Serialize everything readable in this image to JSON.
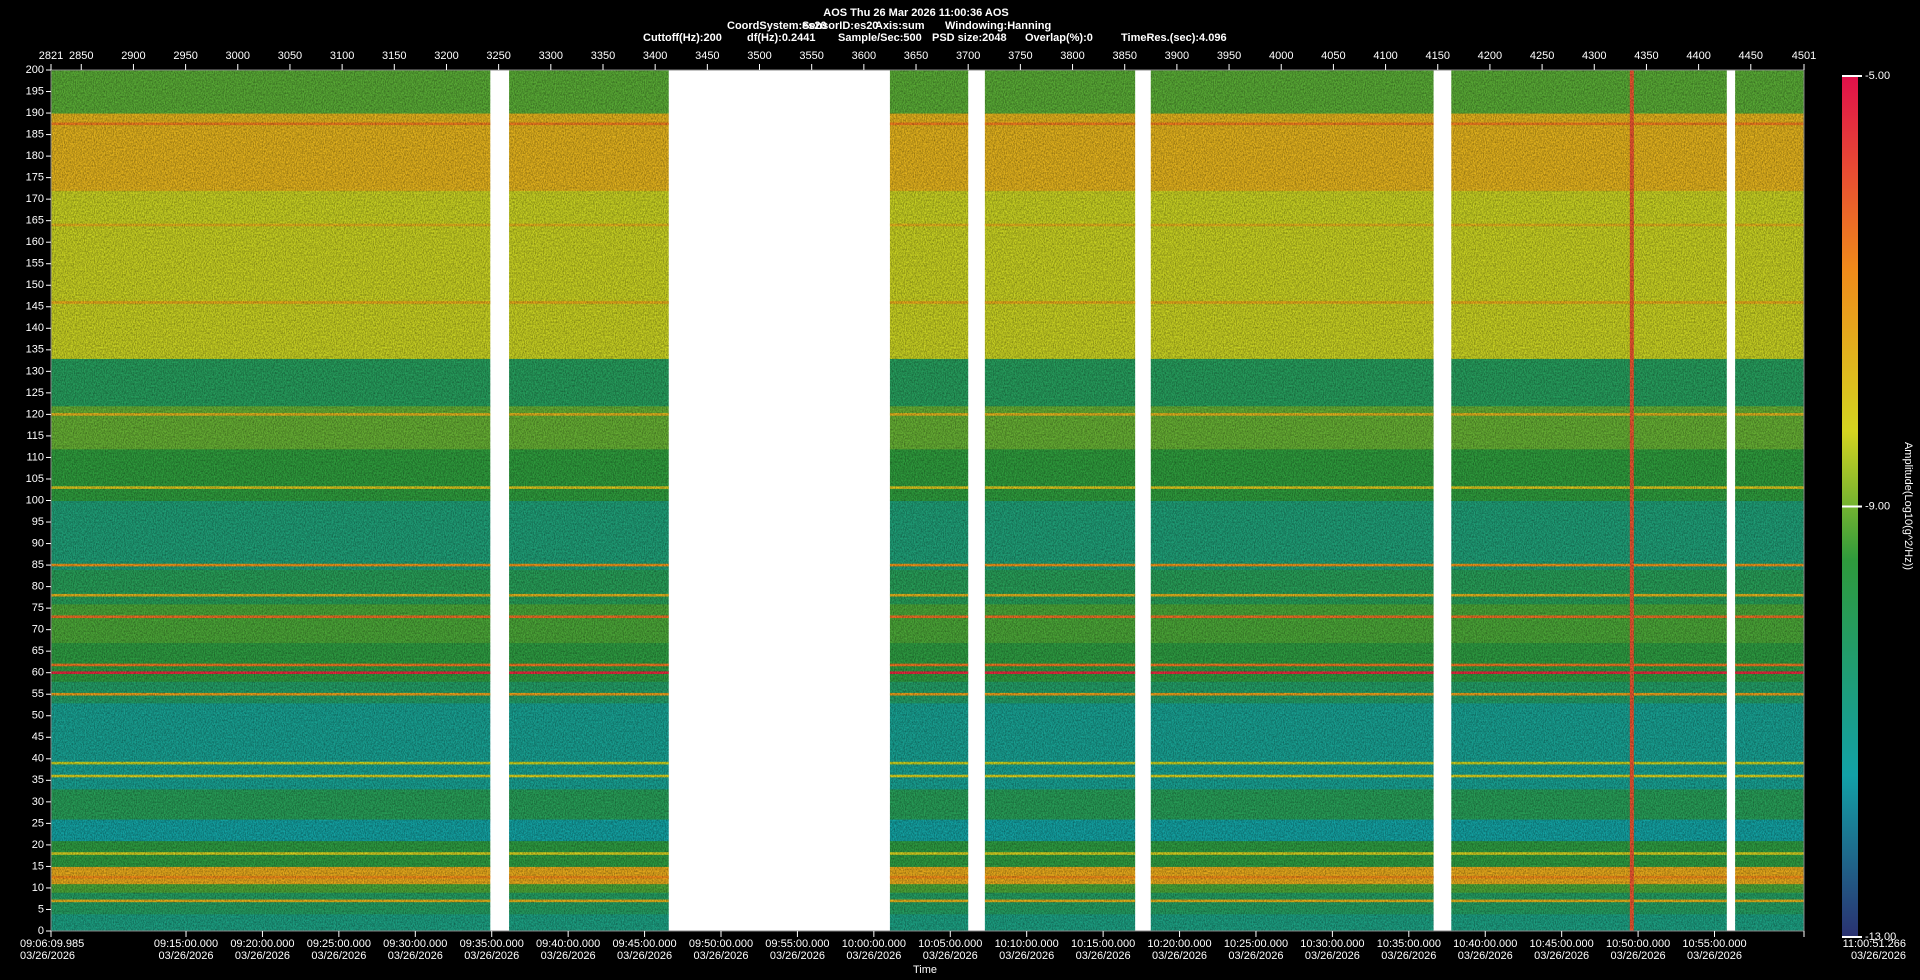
{
  "chart_data": {
    "type": "spectrogram",
    "title": "AOS  Thu 26 Mar 2026 11:00:36  AOS",
    "info_lines": [
      [
        "CoordSystem:es20",
        "SensorID:es20",
        "Axis:sum",
        "Windowing:Hanning"
      ],
      [
        "Cuttoff(Hz):200",
        "df(Hz):0.2441",
        "Sample/Sec:500",
        "PSD size:2048",
        "Overlap(%):0",
        "TimeRes.(sec):4.096"
      ]
    ],
    "x_label": "Time",
    "colorbar_label": "Amplitude(Log10(g^2/Hz))",
    "xlim": [
      2821,
      4501
    ],
    "xticks": [
      2821,
      2850,
      2900,
      2950,
      3000,
      3050,
      3100,
      3150,
      3200,
      3250,
      3300,
      3350,
      3400,
      3450,
      3500,
      3550,
      3600,
      3650,
      3700,
      3750,
      3800,
      3850,
      3900,
      3950,
      4000,
      4050,
      4100,
      4150,
      4200,
      4250,
      4300,
      4350,
      4400,
      4450,
      4501
    ],
    "time_ticks": [
      {
        "value": 2821,
        "label": "09:06:09.985",
        "date": "03/26/2026"
      },
      {
        "value": 2950.4,
        "label": "09:15:00.000",
        "date": "03/26/2026"
      },
      {
        "value": 3023.64,
        "label": "09:20:00.000",
        "date": "03/26/2026"
      },
      {
        "value": 3096.88,
        "label": "09:25:00.000",
        "date": "03/26/2026"
      },
      {
        "value": 3170.13,
        "label": "09:30:00.000",
        "date": "03/26/2026"
      },
      {
        "value": 3243.37,
        "label": "09:35:00.000",
        "date": "03/26/2026"
      },
      {
        "value": 3316.61,
        "label": "09:40:00.000",
        "date": "03/26/2026"
      },
      {
        "value": 3389.85,
        "label": "09:45:00.000",
        "date": "03/26/2026"
      },
      {
        "value": 3463.1,
        "label": "09:50:00.000",
        "date": "03/26/2026"
      },
      {
        "value": 3536.34,
        "label": "09:55:00.000",
        "date": "03/26/2026"
      },
      {
        "value": 3609.58,
        "label": "10:00:00.000",
        "date": "03/26/2026"
      },
      {
        "value": 3682.82,
        "label": "10:05:00.000",
        "date": "03/26/2026"
      },
      {
        "value": 3756.06,
        "label": "10:10:00.000",
        "date": "03/26/2026"
      },
      {
        "value": 3829.31,
        "label": "10:15:00.000",
        "date": "03/26/2026"
      },
      {
        "value": 3902.55,
        "label": "10:20:00.000",
        "date": "03/26/2026"
      },
      {
        "value": 3975.79,
        "label": "10:25:00.000",
        "date": "03/26/2026"
      },
      {
        "value": 4049.03,
        "label": "10:30:00.000",
        "date": "03/26/2026"
      },
      {
        "value": 4122.28,
        "label": "10:35:00.000",
        "date": "03/26/2026"
      },
      {
        "value": 4195.52,
        "label": "10:40:00.000",
        "date": "03/26/2026"
      },
      {
        "value": 4268.76,
        "label": "10:45:00.000",
        "date": "03/26/2026"
      },
      {
        "value": 4342.0,
        "label": "10:50:00.000",
        "date": "03/26/2026"
      },
      {
        "value": 4415.24,
        "label": "10:55:00.000",
        "date": "03/26/2026"
      },
      {
        "value": 4501,
        "label": "11:00:51.266",
        "date": "03/26/2026"
      }
    ],
    "ylim": [
      0,
      200
    ],
    "yticks": [
      0,
      5,
      10,
      15,
      20,
      25,
      30,
      35,
      40,
      45,
      50,
      55,
      60,
      65,
      70,
      75,
      80,
      85,
      90,
      95,
      100,
      105,
      110,
      115,
      120,
      125,
      130,
      135,
      140,
      145,
      150,
      155,
      160,
      165,
      170,
      175,
      180,
      185,
      190,
      195,
      200
    ],
    "clim": [
      -13,
      -5
    ],
    "cticks": [
      {
        "value": -5,
        "label": "-5.00"
      },
      {
        "value": -9,
        "label": "-9.00"
      },
      {
        "value": -13,
        "label": "-13.00"
      }
    ],
    "colorscale": [
      [
        -13,
        "#2a3170"
      ],
      [
        -11.5,
        "#12a0a6"
      ],
      [
        -9.5,
        "#2e9a3c"
      ],
      [
        -8.3,
        "#d4d420"
      ],
      [
        -6.8,
        "#f08a1a"
      ],
      [
        -5,
        "#e0104a"
      ]
    ],
    "segments": [
      [
        2821,
        3242
      ],
      [
        3260,
        3413
      ],
      [
        3625,
        3700
      ],
      [
        3716,
        3860
      ],
      [
        3875,
        4146
      ],
      [
        4163,
        4427
      ],
      [
        4435,
        4501
      ]
    ],
    "bands": [
      {
        "from": 0,
        "to": 4,
        "value": -10.8
      },
      {
        "from": 4,
        "to": 9,
        "value": -10.2
      },
      {
        "from": 9,
        "to": 11,
        "value": -9.3
      },
      {
        "from": 11,
        "to": 15,
        "value": -7.4
      },
      {
        "from": 15,
        "to": 21,
        "value": -9.6
      },
      {
        "from": 21,
        "to": 26,
        "value": -11.4
      },
      {
        "from": 26,
        "to": 33,
        "value": -10.0
      },
      {
        "from": 33,
        "to": 53,
        "value": -11.1
      },
      {
        "from": 53,
        "to": 58,
        "value": -10.3
      },
      {
        "from": 58,
        "to": 67,
        "value": -9.6
      },
      {
        "from": 67,
        "to": 76,
        "value": -9.3
      },
      {
        "from": 76,
        "to": 84,
        "value": -10.0
      },
      {
        "from": 84,
        "to": 100,
        "value": -10.6
      },
      {
        "from": 100,
        "to": 112,
        "value": -9.5
      },
      {
        "from": 112,
        "to": 122,
        "value": -9.1
      },
      {
        "from": 122,
        "to": 133,
        "value": -10.1
      },
      {
        "from": 133,
        "to": 172,
        "value": -8.4
      },
      {
        "from": 172,
        "to": 190,
        "value": -7.6
      },
      {
        "from": 190,
        "to": 200,
        "value": -9.2
      }
    ],
    "lines": [
      {
        "freq": 7,
        "value": -7.6
      },
      {
        "freq": 12.5,
        "value": -6.8
      },
      {
        "freq": 18,
        "value": -8.2
      },
      {
        "freq": 36,
        "value": -8.2
      },
      {
        "freq": 39,
        "value": -8.4
      },
      {
        "freq": 55,
        "value": -7.2
      },
      {
        "freq": 60,
        "value": -5.4
      },
      {
        "freq": 61.8,
        "value": -6.5
      },
      {
        "freq": 73,
        "value": -6.4
      },
      {
        "freq": 78,
        "value": -7.6
      },
      {
        "freq": 85,
        "value": -7.0
      },
      {
        "freq": 103,
        "value": -8.0
      },
      {
        "freq": 120,
        "value": -7.6
      },
      {
        "freq": 146,
        "value": -7.4
      },
      {
        "freq": 164,
        "value": -7.6
      },
      {
        "freq": 187.5,
        "value": -6.6
      }
    ],
    "events": [
      {
        "x": 4336,
        "value": -6.0
      }
    ]
  }
}
